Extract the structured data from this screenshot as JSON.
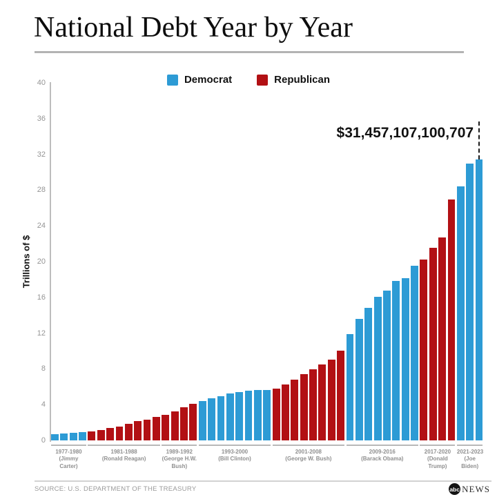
{
  "header": {
    "title": "National Debt Year by Year"
  },
  "legend": {
    "items": [
      {
        "label": "Democrat",
        "party": "Democrat",
        "color": "#2D9BD5"
      },
      {
        "label": "Republican",
        "party": "Republican",
        "color": "#B21014"
      }
    ]
  },
  "chart_data": {
    "type": "bar",
    "title": "National Debt Year by Year",
    "xlabel": "",
    "ylabel": "Trillions of $",
    "ylim": [
      0,
      40
    ],
    "yticks": [
      0,
      4,
      8,
      12,
      16,
      20,
      24,
      28,
      32,
      36,
      40
    ],
    "grid": false,
    "legend_position": "top-center",
    "annotation": {
      "text": "$31,457,107,100,707",
      "target_year": 2023
    },
    "colors": {
      "Democrat": "#2D9BD5",
      "Republican": "#B21014"
    },
    "groups": [
      {
        "label": "1977-1980",
        "president": "Jimmy Carter",
        "party": "Democrat",
        "years": [
          1977,
          1978,
          1979,
          1980
        ],
        "values": [
          0.7,
          0.77,
          0.83,
          0.91
        ]
      },
      {
        "label": "1981-1988",
        "president": "Ronald Reagan",
        "party": "Republican",
        "years": [
          1981,
          1982,
          1983,
          1984,
          1985,
          1986,
          1987,
          1988
        ],
        "values": [
          1.0,
          1.14,
          1.38,
          1.57,
          1.82,
          2.13,
          2.35,
          2.6
        ]
      },
      {
        "label": "1989-1992",
        "president": "George H.W. Bush",
        "party": "Republican",
        "years": [
          1989,
          1990,
          1991,
          1992
        ],
        "values": [
          2.86,
          3.23,
          3.67,
          4.07
        ]
      },
      {
        "label": "1993-2000",
        "president": "Bill Clinton",
        "party": "Democrat",
        "years": [
          1993,
          1994,
          1995,
          1996,
          1997,
          1998,
          1999,
          2000
        ],
        "values": [
          4.41,
          4.69,
          4.97,
          5.22,
          5.41,
          5.53,
          5.66,
          5.67
        ]
      },
      {
        "label": "2001-2008",
        "president": "George W. Bush",
        "party": "Republican",
        "years": [
          2001,
          2002,
          2003,
          2004,
          2005,
          2006,
          2007,
          2008
        ],
        "values": [
          5.81,
          6.23,
          6.78,
          7.38,
          7.93,
          8.51,
          9.01,
          10.02
        ]
      },
      {
        "label": "2009-2016",
        "president": "Barack Obama",
        "party": "Democrat",
        "years": [
          2009,
          2010,
          2011,
          2012,
          2013,
          2014,
          2015,
          2016
        ],
        "values": [
          11.91,
          13.56,
          14.79,
          16.07,
          16.74,
          17.82,
          18.15,
          19.57
        ]
      },
      {
        "label": "2017-2020",
        "president": "Donald Trump",
        "party": "Republican",
        "years": [
          2017,
          2018,
          2019,
          2020
        ],
        "values": [
          20.24,
          21.52,
          22.72,
          26.95
        ]
      },
      {
        "label": "2021-2023",
        "president": "Joe Biden",
        "party": "Democrat",
        "years": [
          2021,
          2022,
          2023
        ],
        "values": [
          28.43,
          30.93,
          31.46
        ]
      }
    ]
  },
  "footer": {
    "source": "SOURCE: U.S. DEPARTMENT OF THE TREASURY",
    "logo_abc": "abc",
    "logo_news": "NEWS"
  }
}
